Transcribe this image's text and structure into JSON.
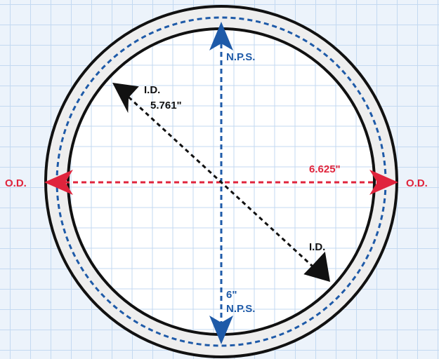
{
  "labels": {
    "od_left": "O.D.",
    "od_right": "O.D.",
    "od_value": "6.625\"",
    "nps_top": "N.P.S.",
    "nps_bottom_value": "6\"",
    "nps_bottom": "N.P.S.",
    "id_top": "I.D.",
    "id_value": "5.761\"",
    "id_bottom": "I.D."
  },
  "colors": {
    "grid_background": "#ecf3fb",
    "grid_line": "#c3d9f1",
    "pipe_fill": "#eeeeee",
    "pipe_outline": "#111111",
    "outer_diameter": "#e0243c",
    "nominal_pipe_size": "#1e5aa8",
    "inner_diameter": "#111111"
  }
}
